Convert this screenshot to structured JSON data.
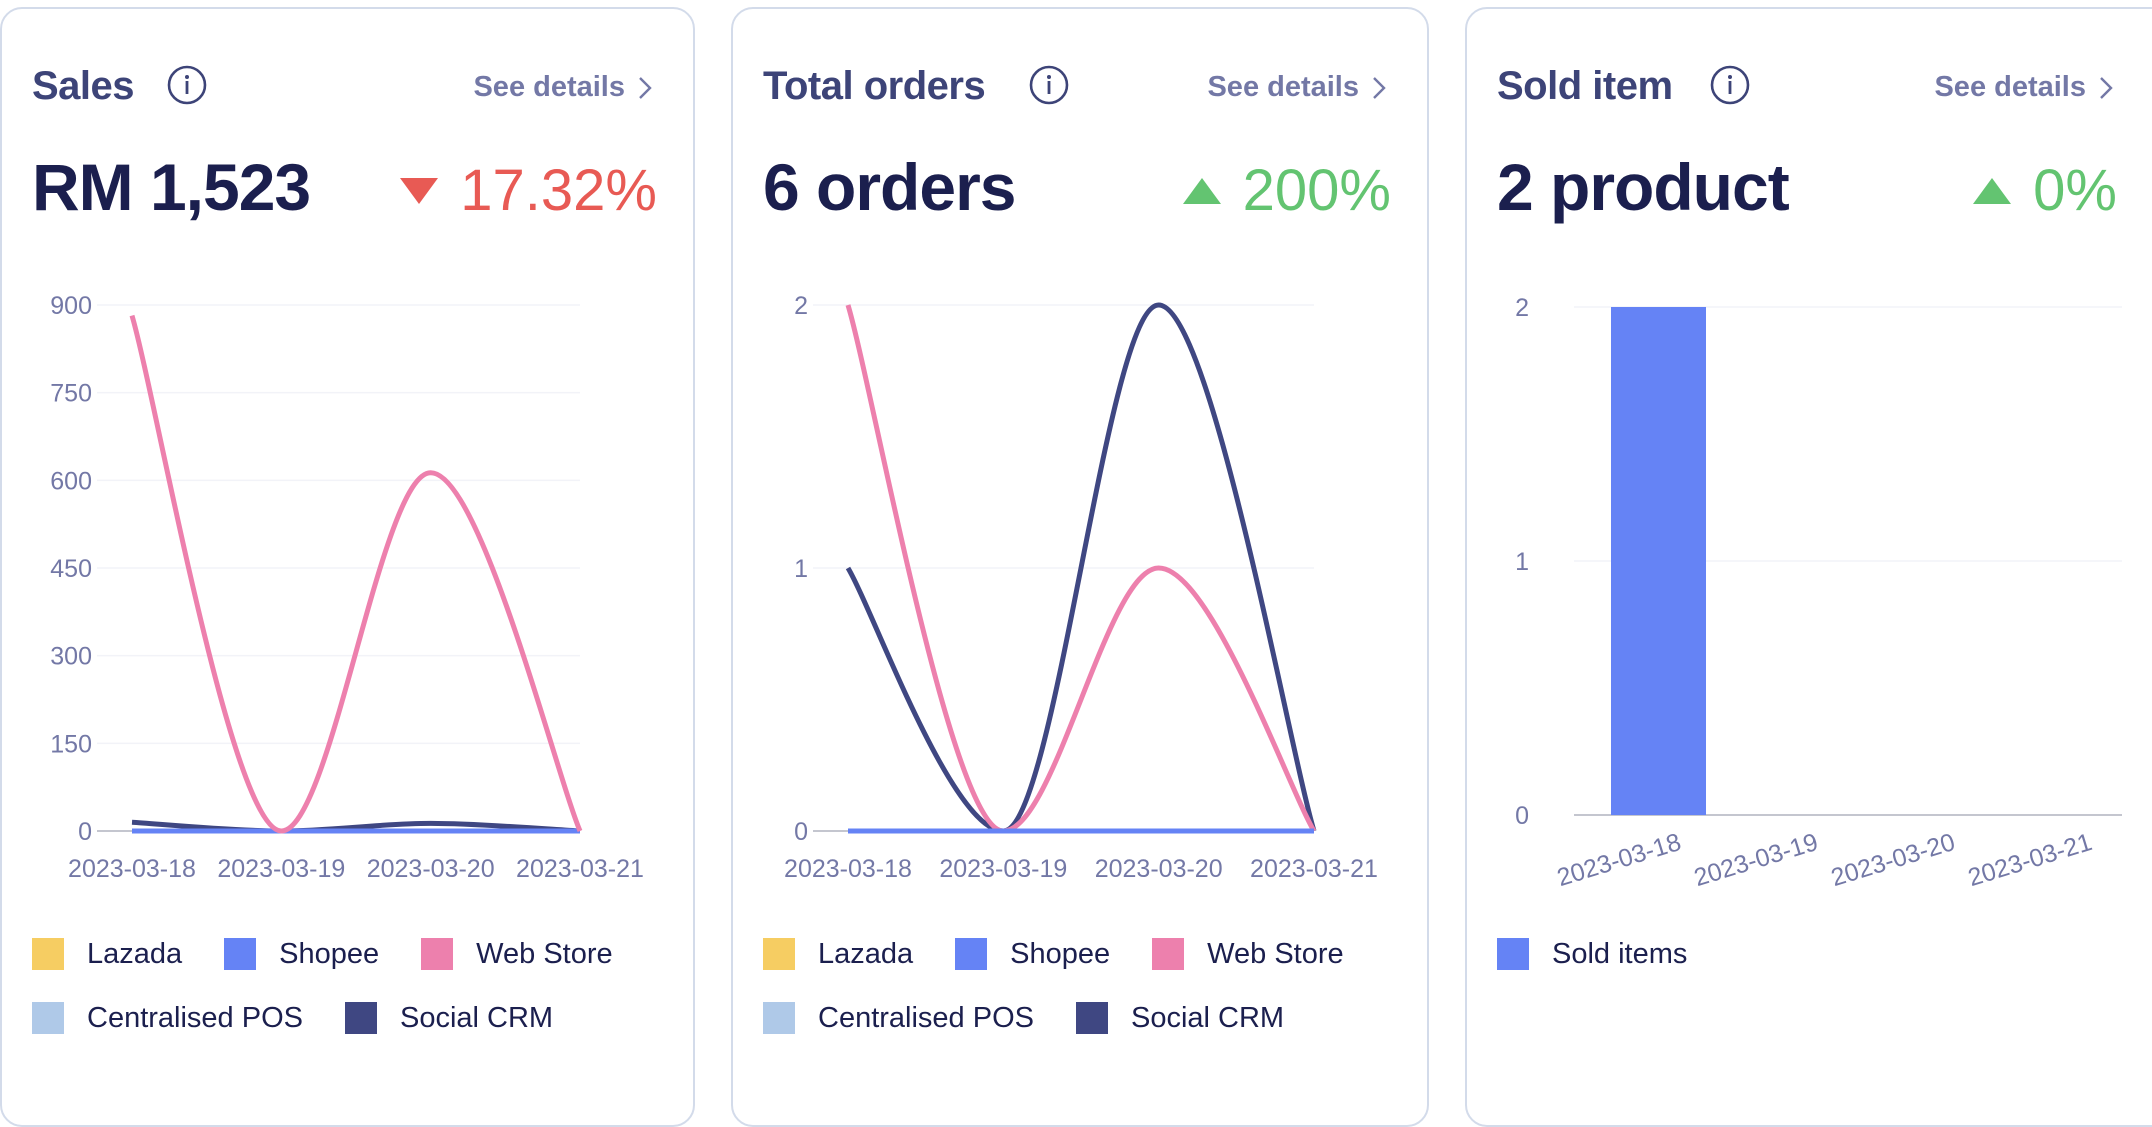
{
  "colors": {
    "lazada": "#f6cd62",
    "shopee": "#6583f5",
    "web_store": "#ed80ad",
    "centralised_pos": "#afc9e8",
    "social_crm": "#3f4782",
    "decrease": "#e85a54",
    "increase": "#63c471",
    "title": "#3d4478",
    "value": "#1b1f4e",
    "muted": "#7378a6"
  },
  "cards": [
    {
      "title": "Sales",
      "see_details": "See details",
      "value": "RM 1,523",
      "change": "17.32%",
      "change_direction": "down",
      "legend_rows": [
        [
          "Lazada",
          "Shopee",
          "Web Store"
        ],
        [
          "Centralised POS",
          "Social CRM"
        ]
      ]
    },
    {
      "title": "Total orders",
      "see_details": "See details",
      "value": "6 orders",
      "change": "200%",
      "change_direction": "up",
      "legend_rows": [
        [
          "Lazada",
          "Shopee",
          "Web Store"
        ],
        [
          "Centralised POS",
          "Social CRM"
        ]
      ]
    },
    {
      "title": "Sold item",
      "see_details": "See details",
      "value": "2 product",
      "change": "0%",
      "change_direction": "up",
      "legend_rows": [
        [
          "Sold items"
        ]
      ]
    }
  ],
  "chart_data": [
    {
      "type": "line",
      "title": "Sales",
      "categories": [
        "2023-03-18",
        "2023-03-19",
        "2023-03-20",
        "2023-03-21"
      ],
      "yticks": [
        0,
        150,
        300,
        450,
        600,
        750,
        900
      ],
      "ylim": [
        0,
        900
      ],
      "grid": true,
      "legend": "bottom",
      "series": [
        {
          "name": "Lazada",
          "color_key": "lazada",
          "values": [
            0,
            0,
            0,
            0
          ]
        },
        {
          "name": "Centralised POS",
          "color_key": "centralised_pos",
          "values": [
            0,
            0,
            0,
            0
          ]
        },
        {
          "name": "Social CRM",
          "color_key": "social_crm",
          "values": [
            15,
            0,
            13,
            0
          ]
        },
        {
          "name": "Shopee",
          "color_key": "shopee",
          "values": [
            0,
            0,
            0,
            0
          ]
        },
        {
          "name": "Web Store",
          "color_key": "web_store",
          "values": [
            882,
            0,
            613,
            0
          ]
        }
      ]
    },
    {
      "type": "line",
      "title": "Total orders",
      "categories": [
        "2023-03-18",
        "2023-03-19",
        "2023-03-20",
        "2023-03-21"
      ],
      "yticks": [
        0,
        1,
        2
      ],
      "ylim": [
        0,
        2
      ],
      "grid": true,
      "legend": "bottom",
      "series": [
        {
          "name": "Lazada",
          "color_key": "lazada",
          "values": [
            0,
            0,
            0,
            0
          ]
        },
        {
          "name": "Centralised POS",
          "color_key": "centralised_pos",
          "values": [
            0,
            0,
            0,
            0
          ]
        },
        {
          "name": "Social CRM",
          "color_key": "social_crm",
          "values": [
            1,
            0,
            2,
            0
          ]
        },
        {
          "name": "Web Store",
          "color_key": "web_store",
          "values": [
            2,
            0,
            1,
            0
          ]
        },
        {
          "name": "Shopee",
          "color_key": "shopee",
          "values": [
            0,
            0,
            0,
            0
          ]
        }
      ]
    },
    {
      "type": "bar",
      "title": "Sold item",
      "categories": [
        "2023-03-18",
        "2023-03-19",
        "2023-03-20",
        "2023-03-21"
      ],
      "yticks": [
        0,
        1,
        2
      ],
      "ylim": [
        0,
        2
      ],
      "grid": true,
      "legend": "bottom",
      "series": [
        {
          "name": "Sold items",
          "color_key": "shopee",
          "values": [
            2,
            0,
            0,
            0
          ]
        }
      ]
    }
  ]
}
